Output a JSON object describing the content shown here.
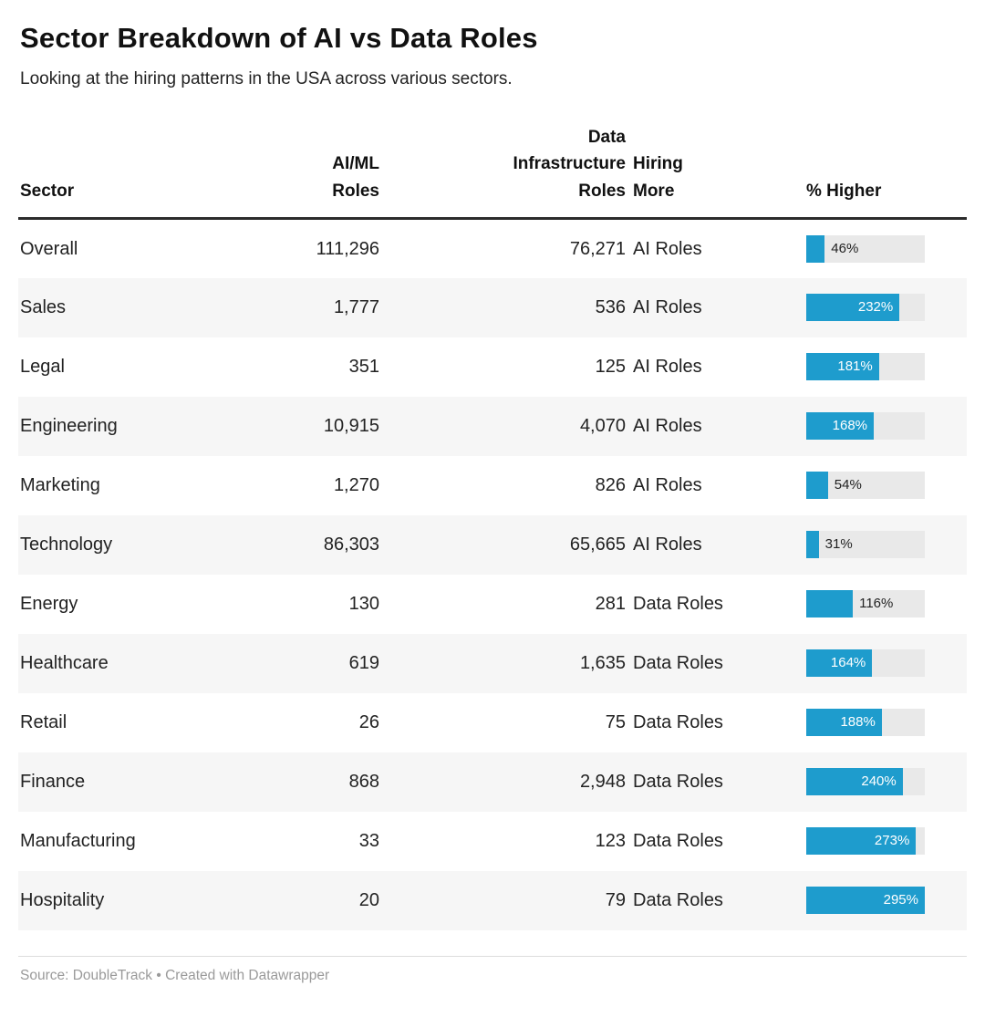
{
  "header": {
    "title": "Sector Breakdown of AI vs Data Roles",
    "subtitle": "Looking at the hiring patterns in the USA across various sectors."
  },
  "table": {
    "bar_max": 295,
    "bar_color": "#1e9ccd",
    "columns": [
      "Sector",
      "AI/ML\nRoles",
      "Data\nInfrastructure\nRoles",
      "Hiring\nMore",
      "% Higher"
    ],
    "rows": [
      {
        "sector": "Overall",
        "ai_ml": "111,296",
        "data_infra": "76,271",
        "hiring_more": "AI Roles",
        "pct_higher": 46
      },
      {
        "sector": "Sales",
        "ai_ml": "1,777",
        "data_infra": "536",
        "hiring_more": "AI Roles",
        "pct_higher": 232
      },
      {
        "sector": "Legal",
        "ai_ml": "351",
        "data_infra": "125",
        "hiring_more": "AI Roles",
        "pct_higher": 181
      },
      {
        "sector": "Engineering",
        "ai_ml": "10,915",
        "data_infra": "4,070",
        "hiring_more": "AI Roles",
        "pct_higher": 168
      },
      {
        "sector": "Marketing",
        "ai_ml": "1,270",
        "data_infra": "826",
        "hiring_more": "AI Roles",
        "pct_higher": 54
      },
      {
        "sector": "Technology",
        "ai_ml": "86,303",
        "data_infra": "65,665",
        "hiring_more": "AI Roles",
        "pct_higher": 31
      },
      {
        "sector": "Energy",
        "ai_ml": "130",
        "data_infra": "281",
        "hiring_more": "Data Roles",
        "pct_higher": 116
      },
      {
        "sector": "Healthcare",
        "ai_ml": "619",
        "data_infra": "1,635",
        "hiring_more": "Data Roles",
        "pct_higher": 164
      },
      {
        "sector": "Retail",
        "ai_ml": "26",
        "data_infra": "75",
        "hiring_more": "Data Roles",
        "pct_higher": 188
      },
      {
        "sector": "Finance",
        "ai_ml": "868",
        "data_infra": "2,948",
        "hiring_more": "Data Roles",
        "pct_higher": 240
      },
      {
        "sector": "Manufacturing",
        "ai_ml": "33",
        "data_infra": "123",
        "hiring_more": "Data Roles",
        "pct_higher": 273
      },
      {
        "sector": "Hospitality",
        "ai_ml": "20",
        "data_infra": "79",
        "hiring_more": "Data Roles",
        "pct_higher": 295
      }
    ]
  },
  "footer": {
    "source_text": "Source: DoubleTrack",
    "separator": "•",
    "created_text": "Created with Datawrapper"
  },
  "chart_data": {
    "type": "table",
    "title": "Sector Breakdown of AI vs Data Roles",
    "subtitle": "Looking at the hiring patterns in the USA across various sectors.",
    "columns": [
      "Sector",
      "AI/ML Roles",
      "Data Infrastructure Roles",
      "Hiring More",
      "% Higher"
    ],
    "rows": [
      [
        "Overall",
        111296,
        76271,
        "AI Roles",
        46
      ],
      [
        "Sales",
        1777,
        536,
        "AI Roles",
        232
      ],
      [
        "Legal",
        351,
        125,
        "AI Roles",
        181
      ],
      [
        "Engineering",
        10915,
        4070,
        "AI Roles",
        168
      ],
      [
        "Marketing",
        1270,
        826,
        "AI Roles",
        54
      ],
      [
        "Technology",
        86303,
        65665,
        "AI Roles",
        31
      ],
      [
        "Energy",
        130,
        281,
        "Data Roles",
        116
      ],
      [
        "Healthcare",
        619,
        1635,
        "Data Roles",
        164
      ],
      [
        "Retail",
        26,
        75,
        "Data Roles",
        188
      ],
      [
        "Finance",
        868,
        2948,
        "Data Roles",
        240
      ],
      [
        "Manufacturing",
        33,
        123,
        "Data Roles",
        273
      ],
      [
        "Hospitality",
        20,
        79,
        "Data Roles",
        295
      ]
    ],
    "bar_column": "% Higher",
    "bar_range": [
      0,
      295
    ],
    "bar_color": "#1e9ccd",
    "source": "DoubleTrack"
  }
}
